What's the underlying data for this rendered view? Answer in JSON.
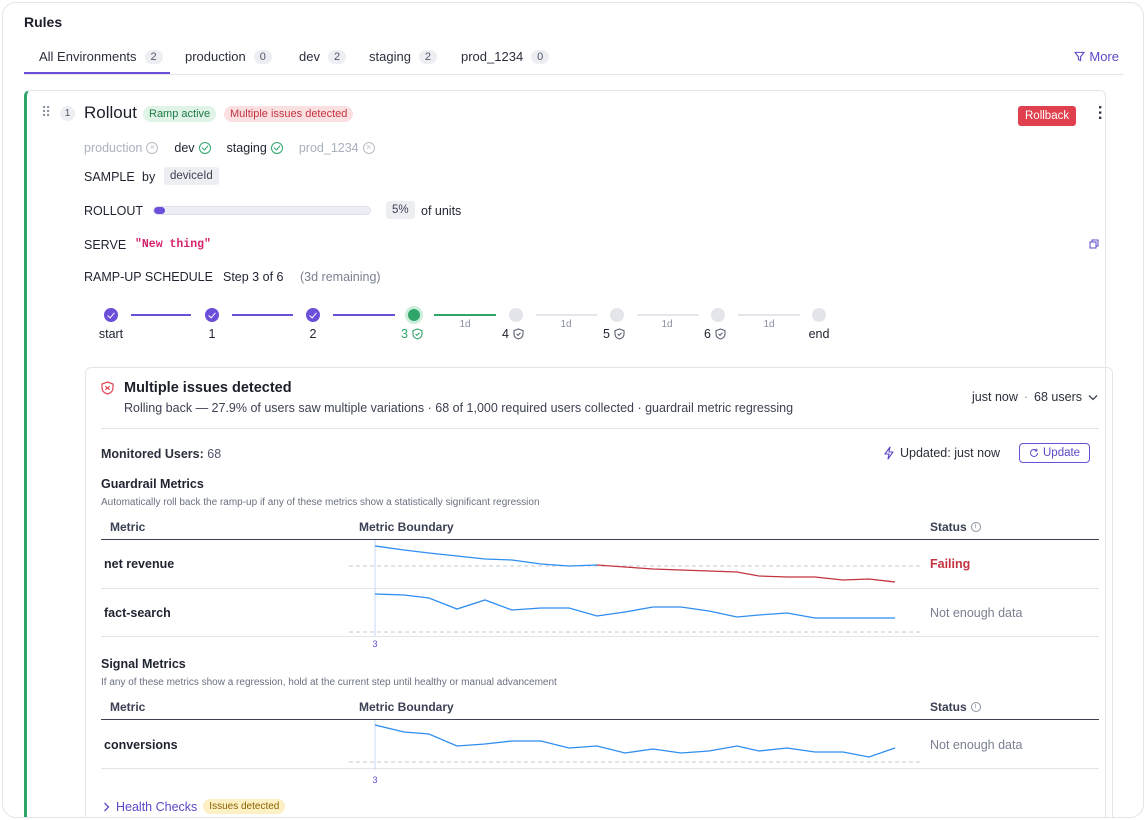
{
  "page": {
    "title": "Rules"
  },
  "tabs": [
    {
      "label": "All Environments",
      "count": "2"
    },
    {
      "label": "production",
      "count": "0"
    },
    {
      "label": "dev",
      "count": "2"
    },
    {
      "label": "staging",
      "count": "2"
    },
    {
      "label": "prod_1234",
      "count": "0"
    }
  ],
  "more_label": "More",
  "rule": {
    "index": "1",
    "name": "Rollout",
    "badge_ramp": "Ramp active",
    "badge_issues": "Multiple issues detected",
    "rollback_label": "Rollback",
    "environments": [
      {
        "name": "production",
        "enabled": false
      },
      {
        "name": "dev",
        "enabled": true
      },
      {
        "name": "staging",
        "enabled": true
      },
      {
        "name": "prod_1234",
        "enabled": false
      }
    ],
    "sample_label": "SAMPLE",
    "sample_by": "by",
    "sample_attr": "deviceId",
    "rollout_label": "ROLLOUT",
    "rollout_percent": 0.05,
    "rollout_value": "5%",
    "rollout_suffix": "of units",
    "serve_label": "SERVE",
    "serve_value": "\"New thing\"",
    "ramp_label": "RAMP-UP SCHEDULE",
    "ramp_step": "Step 3 of 6",
    "ramp_remaining": "(3d remaining)",
    "steps": [
      {
        "label": "start",
        "state": "done"
      },
      {
        "label": "1",
        "state": "done"
      },
      {
        "label": "2",
        "state": "done"
      },
      {
        "label": "3",
        "state": "current"
      },
      {
        "label": "4",
        "state": "pending"
      },
      {
        "label": "5",
        "state": "pending"
      },
      {
        "label": "6",
        "state": "pending"
      },
      {
        "label": "end",
        "state": "pending"
      }
    ],
    "durations": [
      "1d",
      "1d",
      "1d",
      "1d"
    ]
  },
  "issues": {
    "title": "Multiple issues detected",
    "description": "Rolling back — 27.9% of users saw multiple variations · 68 of 1,000 required users collected · guardrail metric regressing",
    "time": "just now",
    "sep": "·",
    "users": "68 users",
    "monitored_label": "Monitored Users:",
    "monitored_value": "68",
    "updated": "Updated: just now",
    "update_button": "Update"
  },
  "guardrail": {
    "title": "Guardrail Metrics",
    "description": "Automatically roll back the ramp-up if any of these metrics show a statistically significant regression",
    "col_metric": "Metric",
    "col_boundary": "Metric Boundary",
    "col_status": "Status",
    "axis_label": "3",
    "rows": [
      {
        "name": "net revenue",
        "status": "Failing",
        "failing": true
      },
      {
        "name": "fact-search",
        "status": "Not enough data",
        "failing": false
      }
    ]
  },
  "signal": {
    "title": "Signal Metrics",
    "description": "If any of these metrics show a regression, hold at the current step until healthy or manual advancement",
    "col_metric": "Metric",
    "col_boundary": "Metric Boundary",
    "col_status": "Status",
    "axis_label": "3",
    "rows": [
      {
        "name": "conversions",
        "status": "Not enough data",
        "failing": false
      }
    ]
  },
  "health": {
    "label": "Health Checks",
    "badge": "Issues detected"
  },
  "colors": {
    "accent": "#6c4fd8",
    "success": "#2fa56a",
    "danger": "#c4333f",
    "line_blue": "#2f8ef0"
  }
}
